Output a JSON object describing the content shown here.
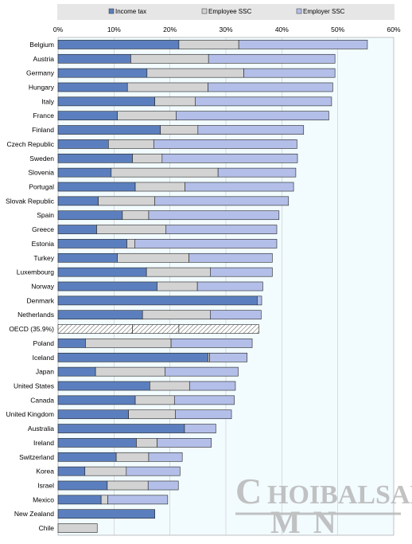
{
  "chart_data": {
    "type": "bar",
    "orientation": "horizontal",
    "stacked": true,
    "x_tick_labels": [
      "0%",
      "10%",
      "20%",
      "30%",
      "40%",
      "50%",
      "60%"
    ],
    "xlim": [
      0,
      60
    ],
    "grid": true,
    "legend_position": "top",
    "legend_labels": [
      "Income tax",
      "Employee SSC",
      "Employer SSC"
    ],
    "colors": {
      "income_tax": "#5b7fbe",
      "employee_ssc": "#d3d3d3",
      "employer_ssc": "#b3bfe8",
      "legend_bg": "#e6e6e6",
      "plot_bg": "#f2fbfe",
      "oecd_hatch": "#555555"
    },
    "categories": [
      "Belgium",
      "Austria",
      "Germany",
      "Hungary",
      "Italy",
      "France",
      "Finland",
      "Czech Republic",
      "Sweden",
      "Slovenia",
      "Portugal",
      "Slovak Republic",
      "Spain",
      "Greece",
      "Estonia",
      "Turkey",
      "Luxembourg",
      "Norway",
      "Denmark",
      "Netherlands",
      "OECD (35.9%)",
      "Poland",
      "Iceland",
      "Japan",
      "United States",
      "Canada",
      "United Kingdom",
      "Australia",
      "Ireland",
      "Switzerland",
      "Korea",
      "Israel",
      "Mexico",
      "New Zealand",
      "Chile"
    ],
    "highlight_category": "OECD (35.9%)",
    "series": [
      {
        "name": "Income tax",
        "values": [
          21.6,
          13.0,
          15.9,
          12.4,
          17.3,
          10.6,
          18.3,
          9.0,
          13.3,
          9.5,
          13.8,
          7.2,
          11.5,
          6.9,
          12.3,
          10.6,
          15.8,
          17.7,
          35.6,
          15.1,
          13.3,
          4.9,
          26.8,
          6.7,
          16.4,
          13.8,
          12.6,
          22.6,
          14.0,
          10.4,
          4.8,
          8.8,
          7.7,
          17.3,
          0.0
        ]
      },
      {
        "name": "Employee SSC",
        "values": [
          10.7,
          13.9,
          17.3,
          14.4,
          7.2,
          10.5,
          6.7,
          8.1,
          5.3,
          19.1,
          8.9,
          10.1,
          4.7,
          12.4,
          1.4,
          12.8,
          11.4,
          7.2,
          0.0,
          12.1,
          8.3,
          15.3,
          0.3,
          12.4,
          7.1,
          7.0,
          8.4,
          0.0,
          3.7,
          5.8,
          7.4,
          7.3,
          1.2,
          0.0,
          7.0
        ]
      },
      {
        "name": "Employer SSC",
        "values": [
          23.0,
          22.6,
          16.3,
          22.3,
          24.4,
          27.3,
          18.9,
          25.6,
          24.2,
          13.9,
          19.4,
          23.9,
          23.3,
          19.8,
          25.4,
          14.9,
          11.1,
          11.7,
          0.8,
          9.1,
          14.3,
          14.5,
          6.7,
          13.1,
          8.2,
          10.7,
          10.0,
          5.6,
          9.7,
          6.0,
          9.6,
          5.4,
          10.7,
          0.0,
          0.0
        ]
      }
    ]
  },
  "watermark": {
    "line1": "CHOIBALSAN",
    "line2": "MN"
  }
}
